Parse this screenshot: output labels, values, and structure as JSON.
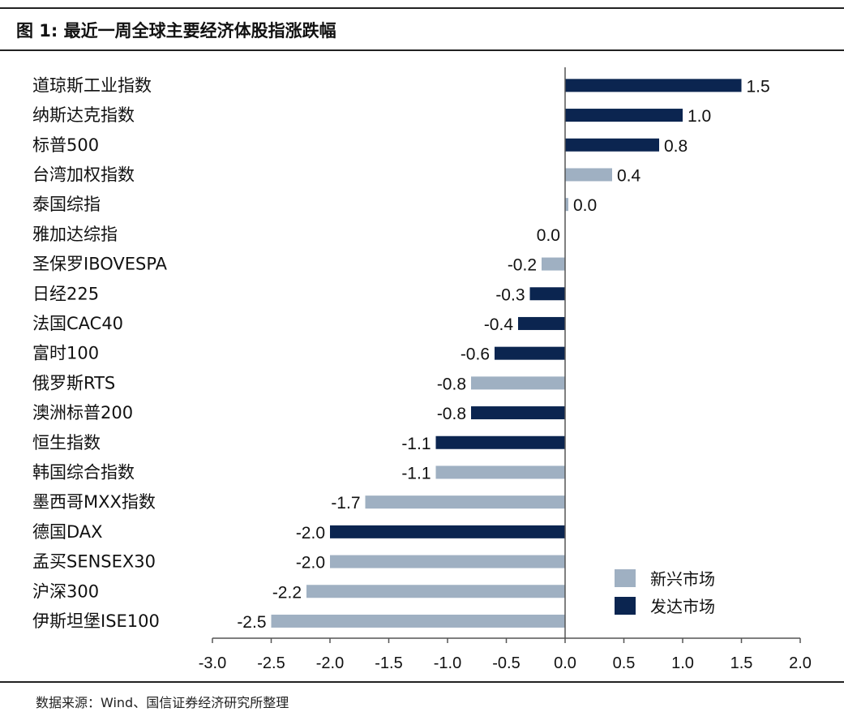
{
  "header": {
    "title": "图 1:  最近一周全球主要经济体股指涨跌幅"
  },
  "footer": {
    "source": "数据来源：Wind、国信证券经济研究所整理"
  },
  "colors": {
    "developed": "#0b2550",
    "emerging": "#9fb0c2"
  },
  "chart_data": {
    "type": "bar",
    "orientation": "horizontal",
    "categories": [
      "道琼斯工业指数",
      "纳斯达克指数",
      "标普500",
      "台湾加权指数",
      "泰国综指",
      "雅加达综指",
      "圣保罗IBOVESPA",
      "日经225",
      "法国CAC40",
      "富时100",
      "俄罗斯RTS",
      "澳洲标普200",
      "恒生指数",
      "韩国综合指数",
      "墨西哥MXX指数",
      "德国DAX",
      "孟买SENSEX30",
      "沪深300",
      "伊斯坦堡ISE100"
    ],
    "values": [
      1.5,
      1.0,
      0.8,
      0.4,
      0.0,
      0.0,
      -0.2,
      -0.3,
      -0.4,
      -0.6,
      -0.8,
      -0.8,
      -1.1,
      -1.1,
      -1.7,
      -2.0,
      -2.0,
      -2.2,
      -2.5
    ],
    "value_labels": [
      "1.5",
      "1.0",
      "0.8",
      "0.4",
      "0.0",
      "0.0",
      "-0.2",
      "-0.3",
      "-0.4",
      "-0.6",
      "-0.8",
      "-0.8",
      "-1.1",
      "-1.1",
      "-1.7",
      "-2.0",
      "-2.0",
      "-2.2",
      "-2.5"
    ],
    "group": [
      "发达市场",
      "发达市场",
      "发达市场",
      "新兴市场",
      "新兴市场",
      "新兴市场",
      "新兴市场",
      "发达市场",
      "发达市场",
      "发达市场",
      "新兴市场",
      "发达市场",
      "发达市场",
      "新兴市场",
      "新兴市场",
      "发达市场",
      "新兴市场",
      "新兴市场",
      "新兴市场"
    ],
    "legend": [
      {
        "name": "新兴市场",
        "color": "#9fb0c2"
      },
      {
        "name": "发达市场",
        "color": "#0b2550"
      }
    ],
    "legend_position": "bottom-right",
    "xlim": [
      -3.0,
      2.0
    ],
    "xticks": [
      -3.0,
      -2.5,
      -2.0,
      -1.5,
      -1.0,
      -0.5,
      0.0,
      0.5,
      1.0,
      1.5,
      2.0
    ],
    "xtick_labels": [
      "-3.0",
      "-2.5",
      "-2.0",
      "-1.5",
      "-1.0",
      "-0.5",
      "0.0",
      "0.5",
      "1.0",
      "1.5",
      "2.0"
    ],
    "grid": false
  }
}
